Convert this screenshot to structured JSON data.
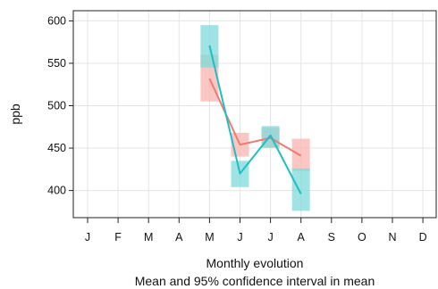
{
  "chart_data": {
    "type": "line",
    "title": "",
    "xlabel": "Monthly evolution",
    "subtitle": "Mean and 95% confidence interval in mean",
    "ylabel": "ppb",
    "categories": [
      "J",
      "F",
      "M",
      "A",
      "M",
      "J",
      "J",
      "A",
      "S",
      "O",
      "N",
      "D"
    ],
    "ylim": [
      368,
      612
    ],
    "yticks": [
      400,
      450,
      500,
      550,
      600
    ],
    "grid": true,
    "legend": "none",
    "series": [
      {
        "color": "#f07b72",
        "band_color": "#f9b4b0",
        "values": [
          null,
          null,
          null,
          null,
          532,
          454,
          462,
          441,
          null,
          null,
          null,
          null
        ],
        "lower": [
          null,
          null,
          null,
          null,
          505,
          440,
          450,
          423,
          null,
          null,
          null,
          null
        ],
        "upper": [
          null,
          null,
          null,
          null,
          560,
          468,
          474,
          461,
          null,
          null,
          null,
          null
        ]
      },
      {
        "color": "#1ebfc4",
        "band_color": "#7fd9db",
        "values": [
          null,
          null,
          null,
          null,
          571,
          420,
          465,
          396,
          null,
          null,
          null,
          null
        ],
        "lower": [
          null,
          null,
          null,
          null,
          545,
          404,
          451,
          376,
          null,
          null,
          null,
          null
        ],
        "upper": [
          null,
          null,
          null,
          null,
          595,
          435,
          476,
          426,
          null,
          null,
          null,
          null
        ]
      }
    ]
  }
}
